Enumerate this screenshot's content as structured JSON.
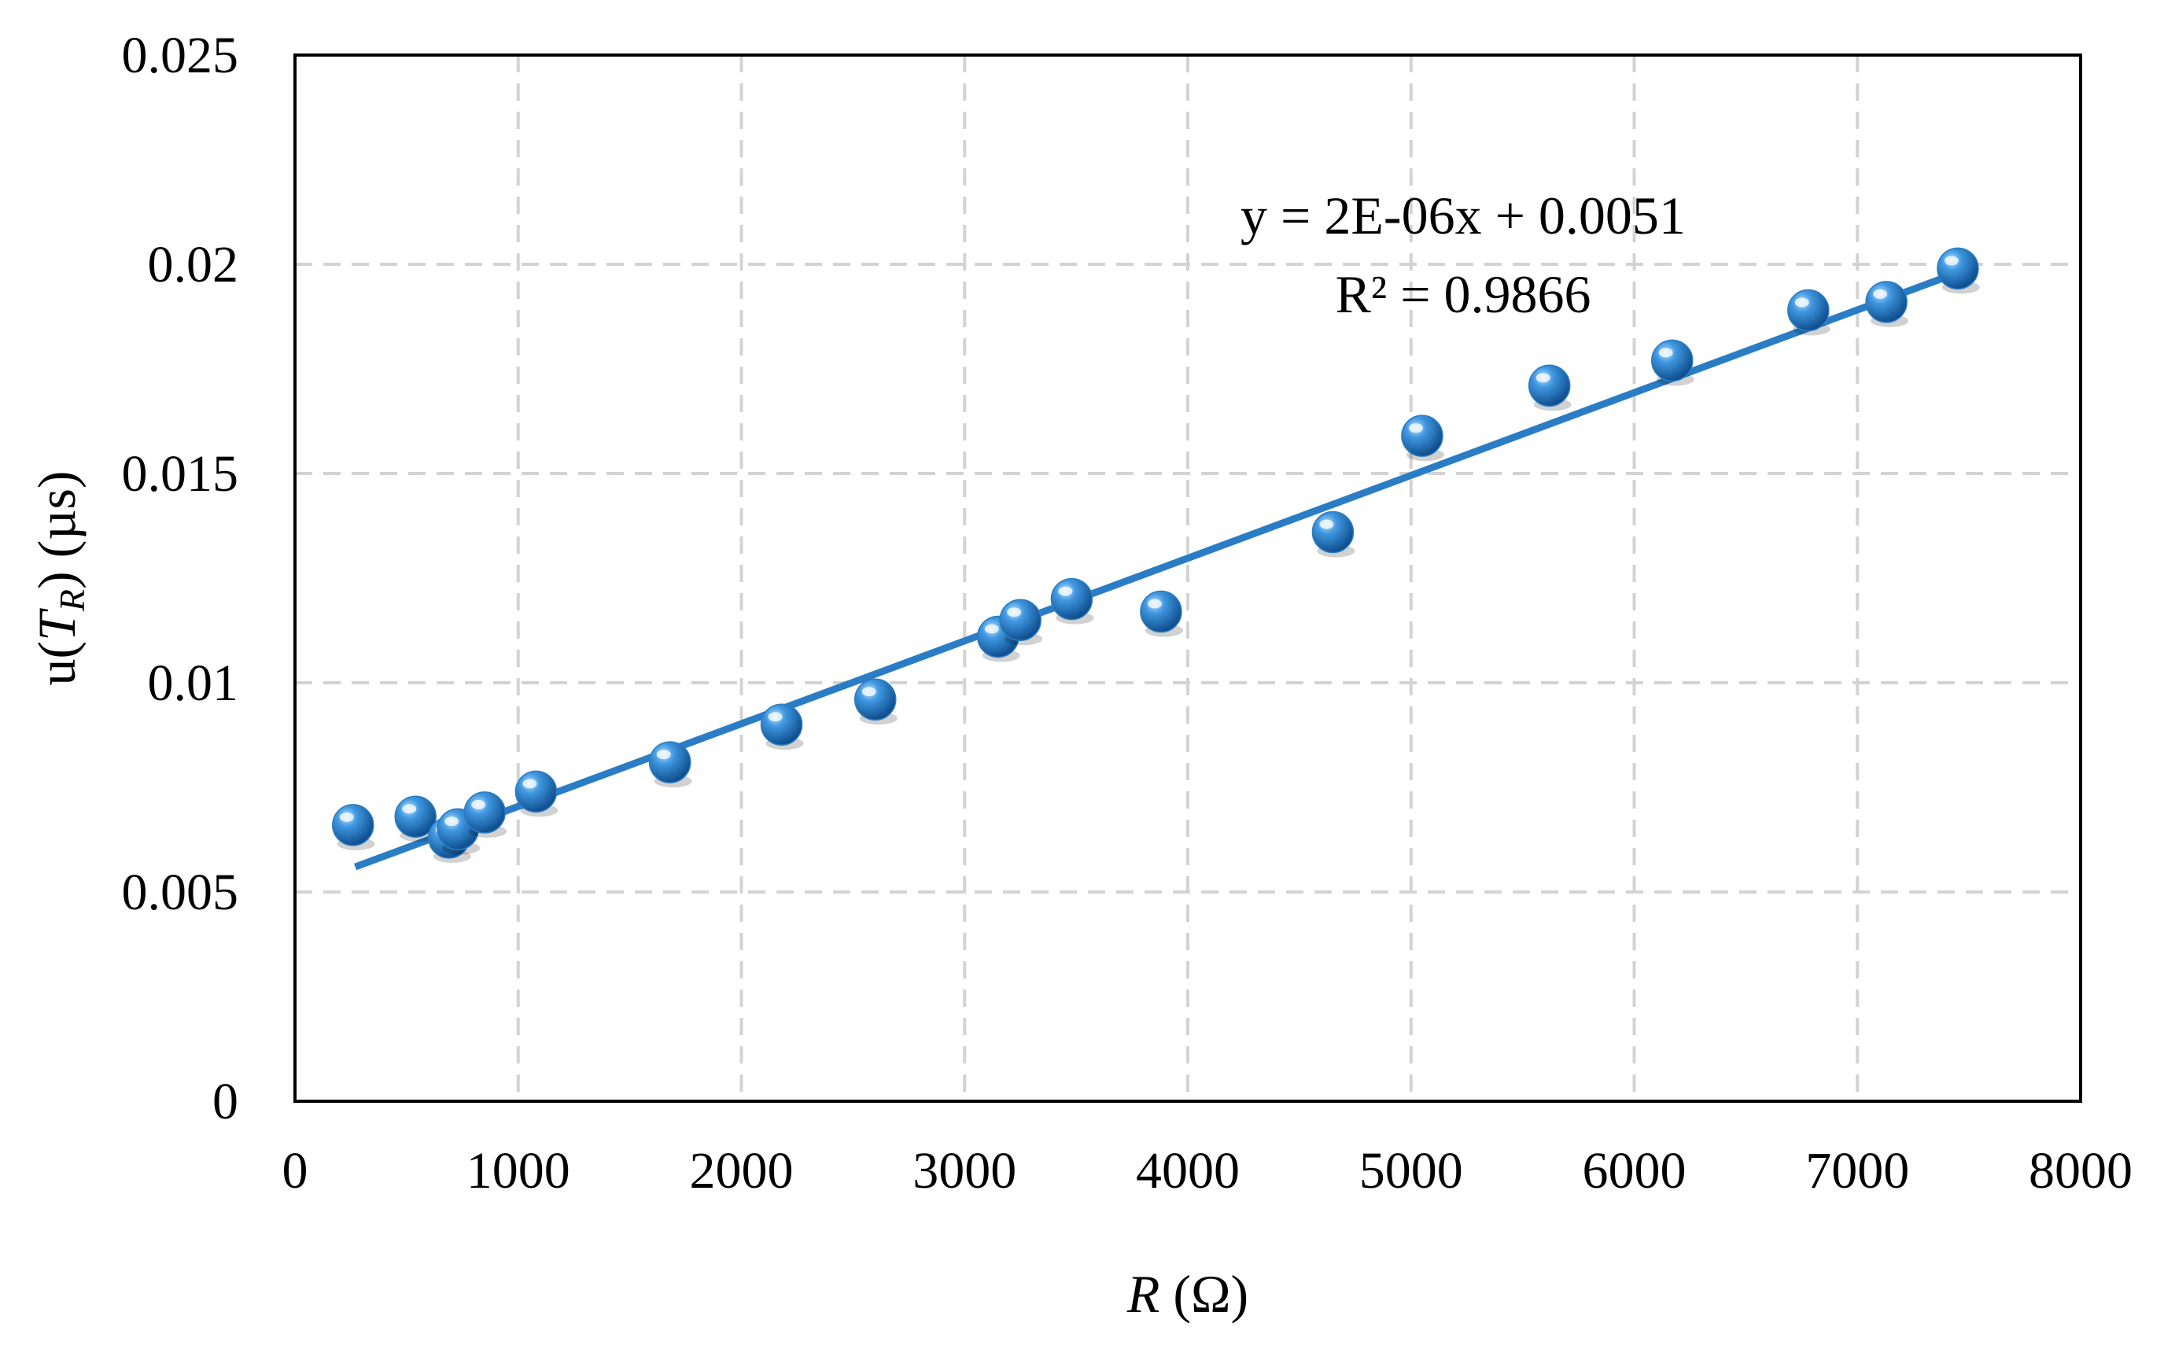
{
  "chart_data": {
    "type": "scatter",
    "title": "",
    "xlabel_italic": "R",
    "xlabel_rest": " (Ω)",
    "ylabel_prefix": "u(",
    "ylabel_var": "T",
    "ylabel_sub": "R",
    "ylabel_suffix": ") (µs)",
    "xlim": [
      0,
      8000
    ],
    "ylim": [
      0,
      0.025
    ],
    "x_ticks": [
      0,
      1000,
      2000,
      3000,
      4000,
      5000,
      6000,
      7000,
      8000
    ],
    "y_ticks": [
      0,
      0.005,
      0.01,
      0.015,
      0.02,
      0.025
    ],
    "x_tick_labels": [
      "0",
      "1000",
      "2000",
      "3000",
      "4000",
      "5000",
      "6000",
      "7000",
      "8000"
    ],
    "y_tick_labels": [
      "0",
      "0.005",
      "0.01",
      "0.015",
      "0.02",
      "0.025"
    ],
    "grid": true,
    "series": [
      {
        "name": "u(TR)",
        "color": "#2a7dc4",
        "points": [
          {
            "x": 260,
            "y": 0.0066
          },
          {
            "x": 540,
            "y": 0.0068
          },
          {
            "x": 690,
            "y": 0.0063
          },
          {
            "x": 730,
            "y": 0.0065
          },
          {
            "x": 850,
            "y": 0.0069
          },
          {
            "x": 1080,
            "y": 0.0074
          },
          {
            "x": 1680,
            "y": 0.0081
          },
          {
            "x": 2180,
            "y": 0.009
          },
          {
            "x": 2600,
            "y": 0.0096
          },
          {
            "x": 3150,
            "y": 0.0111
          },
          {
            "x": 3250,
            "y": 0.0115
          },
          {
            "x": 3480,
            "y": 0.012
          },
          {
            "x": 3880,
            "y": 0.0117
          },
          {
            "x": 4650,
            "y": 0.0136
          },
          {
            "x": 5050,
            "y": 0.0159
          },
          {
            "x": 5620,
            "y": 0.0171
          },
          {
            "x": 6170,
            "y": 0.0177
          },
          {
            "x": 6780,
            "y": 0.0189
          },
          {
            "x": 7130,
            "y": 0.0191
          },
          {
            "x": 7450,
            "y": 0.0199
          }
        ]
      }
    ],
    "trendline": {
      "type": "linear",
      "color": "#2a7dc4",
      "x_range": [
        270,
        7450
      ],
      "y_range": [
        0.0056,
        0.0198
      ]
    },
    "annotations": {
      "equation": "y = 2E-06x + 0.0051",
      "r_squared": "R² = 0.9866"
    }
  }
}
